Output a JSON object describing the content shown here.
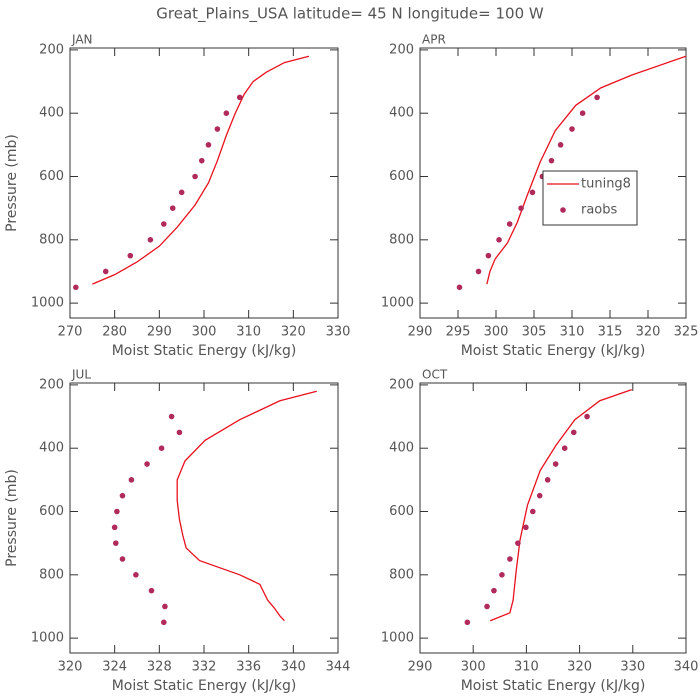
{
  "title": "Great_Plains_USA  latitude= 45 N longitude= 100 W",
  "chart_data": [
    {
      "type": "line",
      "title": "JAN",
      "x_label": "Moist Static Energy (kJ/kg)",
      "y_label": "Pressure (mb)",
      "xlim": [
        270,
        330
      ],
      "xticks": [
        270,
        280,
        290,
        300,
        310,
        320,
        330
      ],
      "ylim": [
        1047,
        194
      ],
      "yticks": [
        200,
        400,
        600,
        800,
        1000
      ],
      "series": [
        {
          "style": "line",
          "color": "#e8101e",
          "x": [
            275,
            280,
            285,
            290,
            294,
            298,
            301,
            303,
            305,
            307,
            309,
            311,
            314,
            318,
            323.5
          ],
          "values": [
            940,
            910,
            870,
            820,
            760,
            690,
            620,
            550,
            470,
            400,
            340,
            300,
            270,
            240,
            220
          ]
        },
        {
          "style": "markers",
          "color": "#b02a5c",
          "x": [
            271.3,
            278,
            283.5,
            288,
            291,
            293,
            295,
            298,
            299.5,
            301,
            303,
            305,
            308
          ],
          "values": [
            950,
            900,
            850,
            800,
            750,
            700,
            650,
            600,
            550,
            500,
            450,
            400,
            350
          ]
        }
      ]
    },
    {
      "type": "line",
      "title": "APR",
      "x_label": "Moist Static Energy (kJ/kg)",
      "xlim": [
        290,
        325
      ],
      "xticks": [
        290,
        295,
        300,
        305,
        310,
        315,
        320,
        325
      ],
      "ylim": [
        1047,
        194
      ],
      "yticks": [
        200,
        400,
        600,
        800,
        1000
      ],
      "legend": "center right",
      "series": [
        {
          "name": "tuning8",
          "style": "line",
          "color": "#e8101e",
          "x": [
            298.8,
            299.2,
            299.9,
            301.5,
            302.8,
            304.1,
            305.8,
            307.8,
            310.5,
            313.8,
            317.8,
            325
          ],
          "values": [
            940,
            900,
            860,
            810,
            745,
            660,
            555,
            455,
            375,
            320,
            280,
            220
          ]
        },
        {
          "name": "raobs",
          "style": "markers",
          "color": "#b02a5c",
          "x": [
            295.2,
            297.7,
            299,
            300.4,
            301.8,
            303.3,
            304.8,
            306.1,
            307.3,
            308.5,
            310,
            311.4,
            313.3
          ],
          "values": [
            950,
            900,
            850,
            800,
            750,
            700,
            650,
            600,
            550,
            500,
            450,
            400,
            350
          ]
        }
      ]
    },
    {
      "type": "line",
      "title": "JUL",
      "x_label": "Moist Static Energy (kJ/kg)",
      "y_label": "Pressure (mb)",
      "xlim": [
        320,
        344
      ],
      "xticks": [
        320,
        324,
        328,
        332,
        336,
        340,
        344
      ],
      "ylim": [
        1047,
        194
      ],
      "yticks": [
        200,
        400,
        600,
        800,
        1000
      ],
      "series": [
        {
          "style": "line",
          "color": "#e8101e",
          "x": [
            342.1,
            338.8,
            335.2,
            332.1,
            330.3,
            329.6,
            329.6,
            329.8,
            330.1,
            330.4,
            331.6,
            335.2,
            337,
            337.7,
            338.3,
            338.8,
            339.2
          ],
          "values": [
            220,
            250,
            310,
            375,
            440,
            500,
            565,
            625,
            675,
            715,
            755,
            800,
            830,
            880,
            905,
            930,
            945
          ]
        },
        {
          "style": "markers",
          "color": "#b02a5c",
          "x": [
            329.1,
            329.8,
            328.2,
            326.9,
            325.5,
            324.7,
            324.2,
            324,
            324.1,
            324.7,
            325.9,
            327.3,
            328.5,
            328.4
          ],
          "values": [
            300,
            350,
            400,
            450,
            500,
            550,
            600,
            650,
            700,
            750,
            800,
            850,
            900,
            950
          ]
        }
      ]
    },
    {
      "type": "line",
      "title": "OCT",
      "x_label": "Moist Static Energy (kJ/kg)",
      "xlim": [
        290,
        340
      ],
      "xticks": [
        290,
        300,
        310,
        320,
        330,
        340
      ],
      "ylim": [
        1047,
        194
      ],
      "yticks": [
        200,
        400,
        600,
        800,
        1000
      ],
      "series": [
        {
          "style": "line",
          "color": "#e8101e",
          "x": [
            303.2,
            306.9,
            307.5,
            308.1,
            308.8,
            310.2,
            312.6,
            315.6,
            319.1,
            323.8,
            329.8
          ],
          "values": [
            945,
            920,
            880,
            785,
            690,
            580,
            470,
            390,
            310,
            250,
            215
          ]
        },
        {
          "style": "markers",
          "color": "#b02a5c",
          "x": [
            298.9,
            302.6,
            303.9,
            305.4,
            306.9,
            308.4,
            309.9,
            311.2,
            312.5,
            314,
            315.5,
            317.2,
            318.9,
            321.4
          ],
          "values": [
            950,
            900,
            850,
            800,
            750,
            700,
            650,
            600,
            550,
            500,
            450,
            400,
            350,
            300
          ]
        }
      ]
    }
  ]
}
